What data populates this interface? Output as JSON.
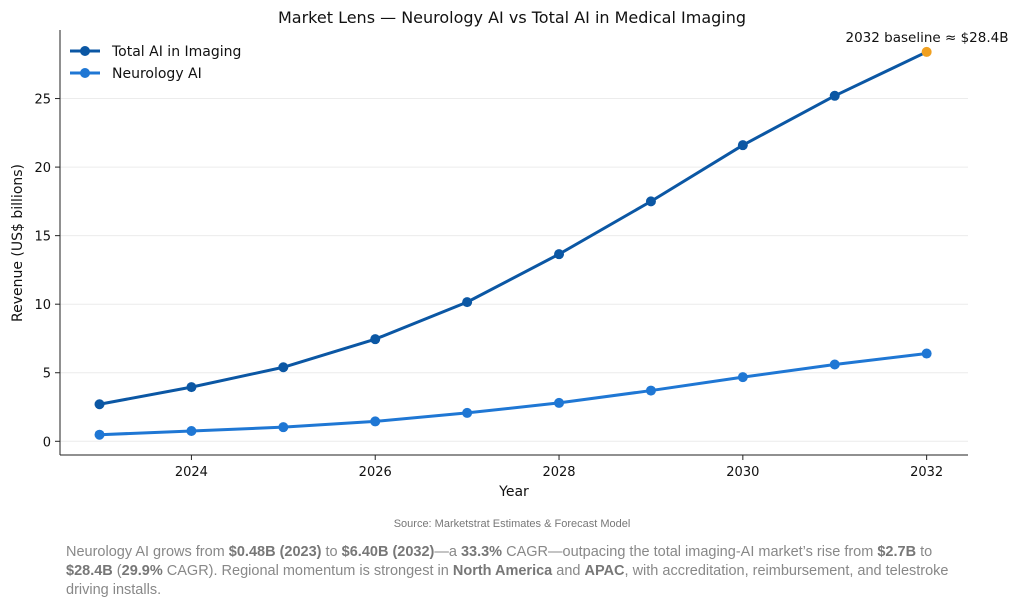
{
  "chart_data": {
    "type": "line",
    "title": "Market Lens — Neurology AI vs Total AI in Medical Imaging",
    "xlabel": "Year",
    "ylabel": "Revenue (US$ billions)",
    "xlim": [
      2022.57,
      2032.45
    ],
    "ylim": [
      -1,
      30
    ],
    "xticks": [
      2024,
      2026,
      2028,
      2030,
      2032
    ],
    "yticks": [
      0,
      5,
      10,
      15,
      20,
      25
    ],
    "grid": "horizontal",
    "legend_position": "top-left",
    "x": [
      2023,
      2024,
      2025,
      2026,
      2027,
      2028,
      2029,
      2030,
      2031,
      2032
    ],
    "series": [
      {
        "name": "Total AI in Imaging",
        "color": "#0b57a4",
        "values": [
          2.7,
          3.95,
          5.4,
          7.45,
          10.15,
          13.65,
          17.5,
          21.6,
          25.2,
          28.4
        ]
      },
      {
        "name": "Neurology AI",
        "color": "#1f77d4",
        "values": [
          0.48,
          0.75,
          1.03,
          1.45,
          2.07,
          2.8,
          3.7,
          4.68,
          5.6,
          6.4
        ]
      }
    ],
    "annotation": {
      "text": "2032 baseline ≈ $28.4B",
      "x": 2032,
      "y": 28.4,
      "color": "#f0a020"
    }
  },
  "source": "Source: Marketstrat Estimates & Forecast Model",
  "caption": [
    {
      "text": "Neurology AI grows from ",
      "bold": false
    },
    {
      "text": "$0.48B (2023)",
      "bold": true
    },
    {
      "text": " to ",
      "bold": false
    },
    {
      "text": "$6.40B (2032)",
      "bold": true
    },
    {
      "text": "—a ",
      "bold": false
    },
    {
      "text": "33.3%",
      "bold": true
    },
    {
      "text": " CAGR—outpacing the total imaging-AI market’s rise from ",
      "bold": false
    },
    {
      "text": "$2.7B",
      "bold": true
    },
    {
      "text": " to ",
      "bold": false
    },
    {
      "text": "$28.4B",
      "bold": true
    },
    {
      "text": " (",
      "bold": false
    },
    {
      "text": "29.9%",
      "bold": true
    },
    {
      "text": " CAGR). Regional momentum is strongest in ",
      "bold": false
    },
    {
      "text": "North America",
      "bold": true
    },
    {
      "text": " and ",
      "bold": false
    },
    {
      "text": "APAC",
      "bold": true
    },
    {
      "text": ", with accreditation, reimbursement, and telestroke driving installs.",
      "bold": false
    }
  ]
}
